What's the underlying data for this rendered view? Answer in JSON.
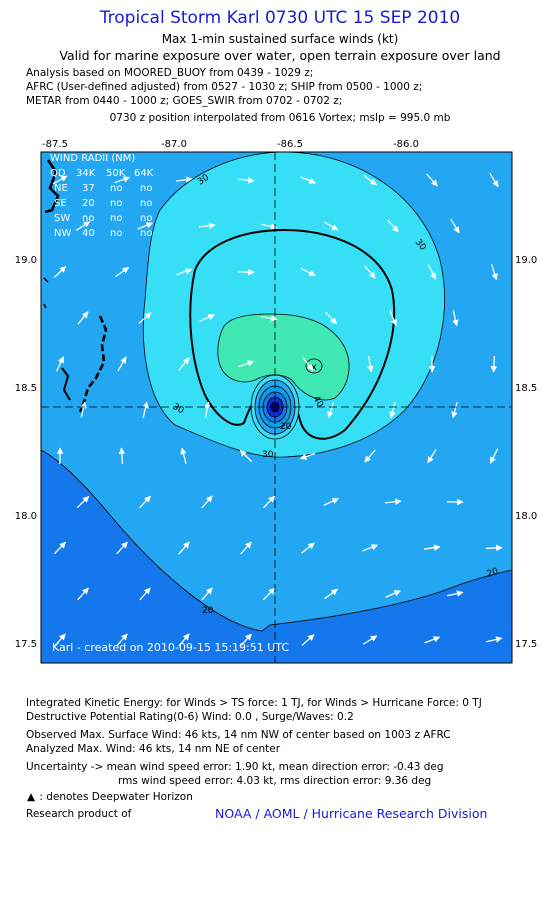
{
  "header": {
    "title": "Tropical Storm Karl 0730 UTC 15 SEP 2010",
    "subtitle1": "Max 1-min sustained surface winds (kt)",
    "subtitle2": "Valid for marine exposure over water, open terrain exposure over land",
    "analysis_lines": [
      "Analysis based on MOORED_BUOY from 0439 - 1029 z;",
      "AFRC (User-defined adjusted) from 0527 - 1030 z; SHIP from 0500 - 1000 z;",
      "METAR from 0440 - 1000 z; GOES_SWIR from 0702 - 0702 z;"
    ],
    "position_line": "0730 z position interpolated from 0616 Vortex; mslp = 995.0 mb"
  },
  "map": {
    "lon_ticks": [
      "-87.5",
      "-87.0",
      "-86.5",
      "-86.0"
    ],
    "lat_ticks": [
      "19.0",
      "18.5",
      "18.0",
      "17.5"
    ],
    "extent": {
      "lon_min": -87.6,
      "lon_max": -85.6,
      "lat_min": 17.44,
      "lat_max": 19.43
    },
    "center": {
      "lon": -86.54,
      "lat": 18.42
    },
    "contour_labels": [
      "30",
      "30",
      "30",
      "30",
      "40",
      "20",
      "20",
      "20"
    ],
    "wind_radii": {
      "title": "WIND RADII (NM)",
      "header": [
        "QD",
        "34K",
        "50K",
        "64K"
      ],
      "rows": [
        [
          "NE",
          "37",
          "no",
          "no"
        ],
        [
          "SE",
          "20",
          "no",
          "no"
        ],
        [
          "SW",
          "no",
          "no",
          "no"
        ],
        [
          "NW",
          "40",
          "no",
          "no"
        ]
      ]
    },
    "max_marker": "x",
    "credit": "Karl - created on 2010-09-15 15:19:51 UTC",
    "colors": {
      "band_below20": "#1478ec",
      "band_20_30": "#23a7f2",
      "band_30_40": "#36dff6",
      "band_40_50": "#3fe8b0",
      "core_light": "#0a9ee8",
      "core_dark": "#0a2fd0",
      "eye": "#000080"
    }
  },
  "footer": {
    "ike_line": "Integrated Kinetic Energy: for Winds > TS force: 1 TJ, for Winds > Hurricane Force: 0 TJ",
    "dp_line": "Destructive Potential Rating(0-6) Wind: 0.0 , Surge/Waves: 0.2",
    "observed_line": "Observed Max. Surface Wind: 46 kts, 14 nm NW of center based on 1003 z AFRC",
    "analyzed_line": "Analyzed Max. Wind: 46 kts, 14 nm NE of center",
    "uncert_line1": "Uncertainty -> mean wind speed error: 1.90 kt,   mean direction error: -0.43 deg",
    "uncert_line2": "rms wind speed error: 4.03 kt,   rms direction error: 9.36 deg",
    "deepwater_note": ": denotes Deepwater Horizon",
    "research_line": "Research product of",
    "organization": "NOAA / AOML / Hurricane Research Division"
  }
}
